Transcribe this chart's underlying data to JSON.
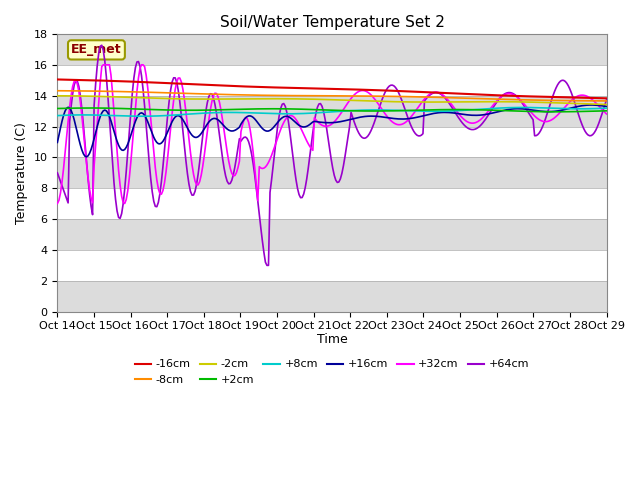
{
  "title": "Soil/Water Temperature Set 2",
  "xlabel": "Time",
  "ylabel": "Temperature (C)",
  "ylim": [
    0,
    18
  ],
  "yticks": [
    0,
    2,
    4,
    6,
    8,
    10,
    12,
    14,
    16,
    18
  ],
  "annotation": "EE_met",
  "series_colors": {
    "-16cm": "#DD0000",
    "-8cm": "#FF8C00",
    "-2cm": "#CCCC00",
    "+2cm": "#00BB00",
    "+8cm": "#00CCCC",
    "+16cm": "#000099",
    "+32cm": "#FF00FF",
    "+64cm": "#9900CC"
  },
  "x_labels": [
    "Oct 14",
    "Oct 15",
    "Oct 16",
    "Oct 17",
    "Oct 18",
    "Oct 19",
    "Oct 20",
    "Oct 21",
    "Oct 22",
    "Oct 23",
    "Oct 24",
    "Oct 25",
    "Oct 26",
    "Oct 27",
    "Oct 28",
    "Oct 29"
  ],
  "background_color": "#FFFFFF"
}
